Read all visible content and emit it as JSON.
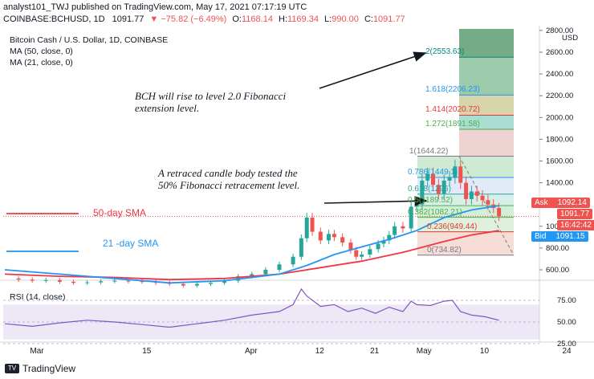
{
  "header": {
    "publisher": "analyst101_TWJ published on TradingView.com, May 17, 2021 07:17:19 UTC",
    "symbol": "COINBASE:BCHUSD, 1D",
    "last": "1091.77",
    "change": "▼ −75.82 (−6.49%)",
    "open_label": "O:",
    "open": "1168.14",
    "high_label": "H:",
    "high": "1169.34",
    "low_label": "L:",
    "low": "990.00",
    "close_label": "C:",
    "close": "1091.77"
  },
  "legend": {
    "title": "Bitcoin Cash / U.S. Dollar, 1D, COINBASE",
    "ma50": "MA (50, close, 0)",
    "ma21": "MA (21, close, 0)",
    "rsi": "RSI (14, close)"
  },
  "annotations": {
    "fib_ext_line1": "BCH will rise to level 2.0 Fibonacci",
    "fib_ext_line2": "extension level.",
    "retrace_line1": "A retraced candle body  tested the",
    "retrace_line2": "50% Fibonacci retracement level.",
    "sma50": "50-day SMA",
    "sma21": "21 -day SMA"
  },
  "price_axis": {
    "currency": "USD",
    "ticks": [
      "2800.00",
      "2600.00",
      "2400.00",
      "2200.00",
      "2000.00",
      "1800.00",
      "1600.00",
      "1400.00",
      "1200.00",
      "1000.00",
      "800.00",
      "600.00"
    ],
    "ask_label": "Ask",
    "ask": "1092.14",
    "last": "1091.77",
    "countdown": "16:42:42",
    "bid_label": "Bid",
    "bid": "1091.15"
  },
  "rsi_axis": {
    "ticks": [
      "75.00",
      "50.00",
      "25.00"
    ]
  },
  "time_axis": {
    "ticks": [
      "Mar",
      "15",
      "Apr",
      "12",
      "21",
      "May",
      "10",
      "24"
    ]
  },
  "footer": {
    "brand": "TradingView"
  },
  "fib_levels": [
    {
      "label": "2(2553.63)",
      "price": 2553.63,
      "color": "#00897b"
    },
    {
      "label": "1.618(2206.23)",
      "price": 2206.23,
      "color": "#2196f3"
    },
    {
      "label": "1.414(2020.72)",
      "price": 2020.72,
      "color": "#e53935"
    },
    {
      "label": "1.272(1891.58)",
      "price": 1891.58,
      "color": "#4caf50"
    },
    {
      "label": "1(1644.22)",
      "price": 1644.22,
      "color": "#787b86"
    },
    {
      "label": "0.786(1449.1)",
      "price": 1449.1,
      "color": "#2196f3"
    },
    {
      "label": "0.618(1296)",
      "price": 1296,
      "color": "#26a69a"
    },
    {
      "label": "0.5(1189.52)",
      "price": 1189.52,
      "color": "#4caf50"
    },
    {
      "label": "0.382(1082.21)",
      "price": 1082.21,
      "color": "#4caf50"
    },
    {
      "label": "0.236(949.44)",
      "price": 949.44,
      "color": "#e53935"
    },
    {
      "label": "0(734.82)",
      "price": 734.82,
      "color": "#787b86"
    }
  ],
  "colors": {
    "up": "#26a69a",
    "down": "#ef5350",
    "ma50": "#f23645",
    "ma21": "#2196f3",
    "rsi": "#7e57c2"
  },
  "chart_data": {
    "type": "line",
    "title": "Bitcoin Cash / U.S. Dollar, 1D, COINBASE",
    "ylim": [
      550,
      2800
    ],
    "price_points": [
      [
        0,
        520
      ],
      [
        5,
        510
      ],
      [
        10,
        500
      ],
      [
        15,
        505
      ],
      [
        20,
        490
      ],
      [
        25,
        480
      ],
      [
        30,
        485
      ],
      [
        35,
        495
      ],
      [
        40,
        500
      ],
      [
        45,
        495
      ],
      [
        50,
        490
      ],
      [
        55,
        480
      ],
      [
        60,
        470
      ],
      [
        65,
        455
      ],
      [
        70,
        470
      ],
      [
        75,
        480
      ],
      [
        80,
        500
      ],
      [
        85,
        540
      ],
      [
        90,
        560
      ],
      [
        95,
        600
      ],
      [
        100,
        650
      ],
      [
        105,
        720
      ],
      [
        108,
        890
      ],
      [
        110,
        1080
      ],
      [
        112,
        950
      ],
      [
        115,
        870
      ],
      [
        118,
        930
      ],
      [
        120,
        900
      ],
      [
        123,
        850
      ],
      [
        126,
        780
      ],
      [
        128,
        720
      ],
      [
        130,
        740
      ],
      [
        133,
        790
      ],
      [
        136,
        840
      ],
      [
        138,
        870
      ],
      [
        140,
        920
      ],
      [
        142,
        1000
      ],
      [
        145,
        980
      ],
      [
        148,
        1180
      ],
      [
        150,
        1200
      ],
      [
        152,
        1420
      ],
      [
        154,
        1480
      ],
      [
        156,
        1380
      ],
      [
        158,
        1300
      ],
      [
        160,
        1420
      ],
      [
        162,
        1450
      ],
      [
        164,
        1550
      ],
      [
        166,
        1400
      ],
      [
        168,
        1250
      ],
      [
        170,
        1320
      ],
      [
        172,
        1280
      ],
      [
        174,
        1240
      ],
      [
        176,
        1200
      ],
      [
        178,
        1168
      ],
      [
        180,
        1092
      ]
    ],
    "ma50_points": [
      [
        0,
        560
      ],
      [
        20,
        540
      ],
      [
        40,
        530
      ],
      [
        60,
        510
      ],
      [
        80,
        520
      ],
      [
        100,
        560
      ],
      [
        115,
        620
      ],
      [
        130,
        680
      ],
      [
        145,
        760
      ],
      [
        160,
        860
      ],
      [
        170,
        920
      ],
      [
        180,
        960
      ]
    ],
    "ma21_points": [
      [
        0,
        600
      ],
      [
        20,
        560
      ],
      [
        40,
        520
      ],
      [
        60,
        480
      ],
      [
        80,
        500
      ],
      [
        100,
        560
      ],
      [
        110,
        640
      ],
      [
        120,
        740
      ],
      [
        130,
        810
      ],
      [
        140,
        880
      ],
      [
        150,
        960
      ],
      [
        160,
        1080
      ],
      [
        170,
        1150
      ],
      [
        180,
        1190
      ]
    ],
    "rsi_points": [
      [
        0,
        48
      ],
      [
        10,
        45
      ],
      [
        20,
        49
      ],
      [
        30,
        52
      ],
      [
        40,
        50
      ],
      [
        50,
        47
      ],
      [
        60,
        44
      ],
      [
        70,
        48
      ],
      [
        80,
        52
      ],
      [
        90,
        58
      ],
      [
        100,
        62
      ],
      [
        105,
        70
      ],
      [
        108,
        88
      ],
      [
        110,
        80
      ],
      [
        115,
        68
      ],
      [
        120,
        70
      ],
      [
        125,
        62
      ],
      [
        130,
        66
      ],
      [
        135,
        60
      ],
      [
        140,
        67
      ],
      [
        145,
        62
      ],
      [
        148,
        74
      ],
      [
        150,
        70
      ],
      [
        155,
        69
      ],
      [
        160,
        74
      ],
      [
        163,
        75
      ],
      [
        166,
        62
      ],
      [
        170,
        58
      ],
      [
        175,
        56
      ],
      [
        180,
        52
      ]
    ]
  }
}
